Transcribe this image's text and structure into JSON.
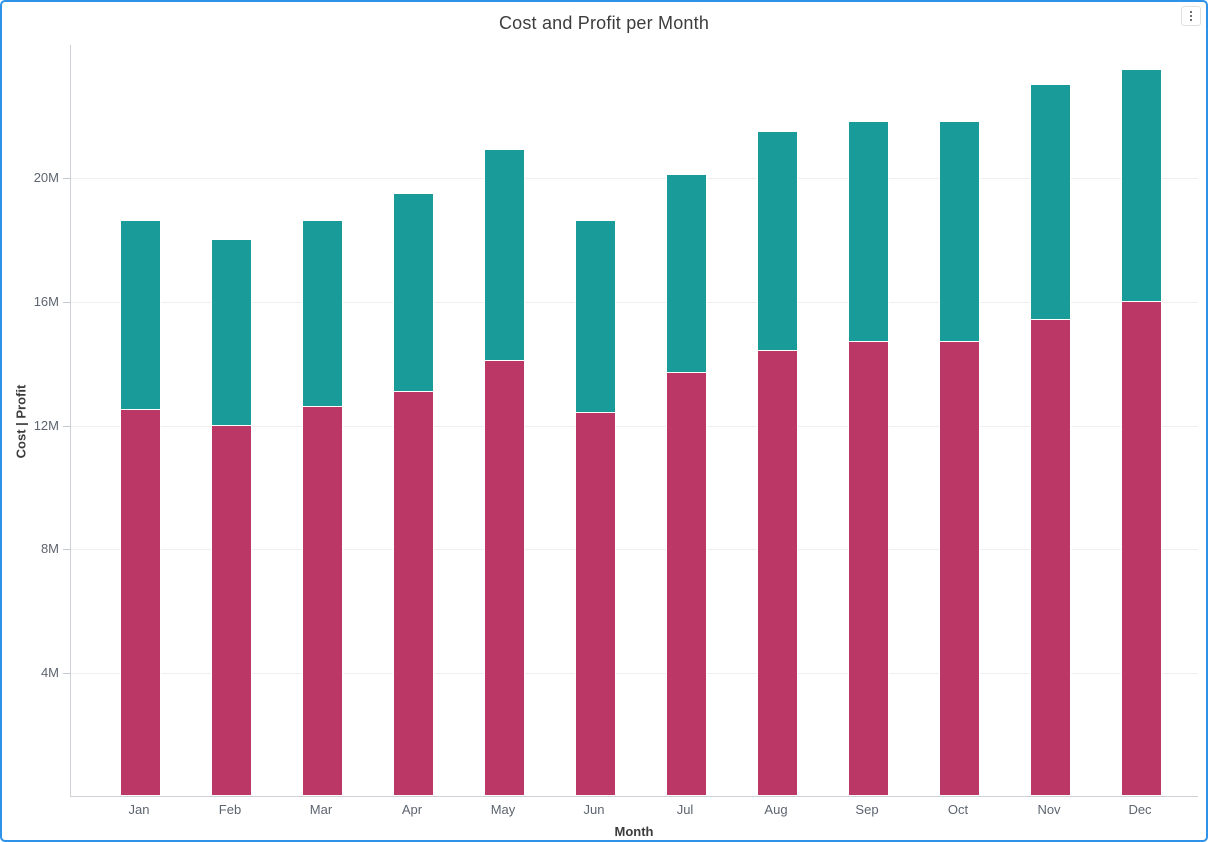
{
  "card": {
    "menu_icon": "kebab-vertical"
  },
  "chart_data": {
    "type": "bar",
    "stacked": true,
    "title": "Cost and Profit per Month",
    "xlabel": "Month",
    "ylabel": "Cost  |  Profit",
    "value_unit": "M",
    "categories": [
      "Jan",
      "Feb",
      "Mar",
      "Apr",
      "May",
      "Jun",
      "Jul",
      "Aug",
      "Sep",
      "Oct",
      "Nov",
      "Dec"
    ],
    "series": [
      {
        "name": "Cost",
        "color": "#BB3866",
        "values": [
          12.5,
          12.0,
          12.6,
          13.1,
          14.1,
          12.4,
          13.7,
          14.4,
          14.7,
          14.7,
          15.4,
          16.0
        ]
      },
      {
        "name": "Profit",
        "color": "#189B99",
        "values": [
          6.1,
          6.0,
          6.0,
          6.4,
          6.8,
          6.2,
          6.4,
          7.1,
          7.1,
          7.1,
          7.6,
          7.5
        ]
      }
    ],
    "totals": [
      18.6,
      18.0,
      18.6,
      19.5,
      20.9,
      18.6,
      20.1,
      21.5,
      21.8,
      21.8,
      23.0,
      23.5
    ],
    "ylim": [
      0,
      24.3
    ],
    "yticks": [
      {
        "value": 4,
        "label": "4M"
      },
      {
        "value": 8,
        "label": "8M"
      },
      {
        "value": 12,
        "label": "12M"
      },
      {
        "value": 16,
        "label": "16M"
      },
      {
        "value": 20,
        "label": "20M"
      }
    ],
    "grid": true,
    "legend_position": "none"
  },
  "colors": {
    "card_border": "#2E93E8",
    "title_text": "#3D3D3D",
    "tick_label": "#5D6570",
    "axis_title": "#3C3C3C",
    "axis_line": "#CDD1D6",
    "gridline": "#EFEFEF"
  }
}
